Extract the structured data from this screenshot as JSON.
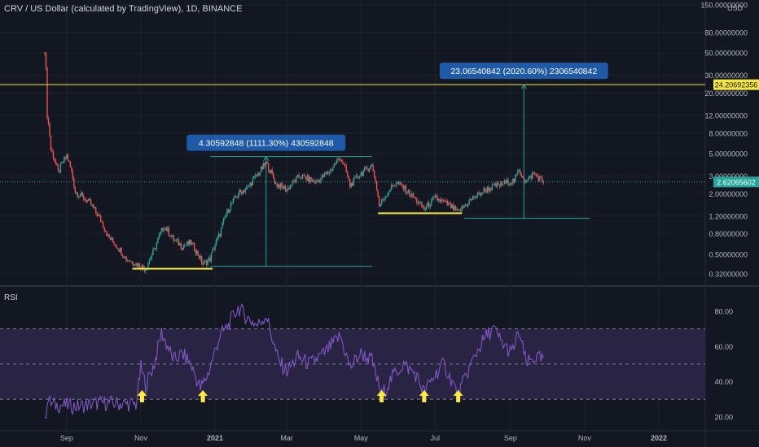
{
  "header": {
    "title": "CRV / US Dollar (calculated by TradingView), 1D, BINANCE"
  },
  "price_axis": {
    "currency": "USD",
    "last_price_label": "2.62065602",
    "resistance_label": "24.20692356"
  },
  "annotations": {
    "measure1": "4.30592848 (1111.30%) 430592848",
    "measure2": "23.06540842 (2020.60%) 2306540842"
  },
  "rsi_panel": {
    "label": "RSI"
  },
  "colors": {
    "background": "#131722",
    "up": "#26a69a",
    "down": "#ef5350",
    "yellow_line": "#f5e642",
    "measure_box": "#1e5aa8",
    "rsi_line": "#7e57c2",
    "rsi_band": "#2a2444",
    "arrow": "#ffeb3b"
  },
  "chart_data": [
    {
      "type": "candlestick",
      "title": "CRV / US Dollar (calculated by TradingView), 1D, BINANCE",
      "scale": "log",
      "ylabel": "USD",
      "y_ticks": [
        "150.00000000",
        "80.00000000",
        "50.00000000",
        "30.00000000",
        "20.00000000",
        "12.00000000",
        "8.00000000",
        "5.00000000",
        "3.00000000",
        "2.00000000",
        "1.20000000",
        "0.80000000",
        "0.50000000",
        "0.32000000"
      ],
      "x_ticks": [
        "Sep",
        "Nov",
        "2021",
        "Mar",
        "May",
        "Jul",
        "Sep",
        "Nov",
        "2022"
      ],
      "last_price": 2.62065602,
      "horizontal_line": 24.20692356,
      "price_path": [
        {
          "t": "2020-08-14",
          "p": 54.0
        },
        {
          "t": "2020-08-16",
          "p": 12.0
        },
        {
          "t": "2020-08-19",
          "p": 5.5
        },
        {
          "t": "2020-08-25",
          "p": 3.2
        },
        {
          "t": "2020-09-01",
          "p": 4.8
        },
        {
          "t": "2020-09-08",
          "p": 2.1
        },
        {
          "t": "2020-09-20",
          "p": 1.6
        },
        {
          "t": "2020-10-05",
          "p": 0.75
        },
        {
          "t": "2020-10-20",
          "p": 0.45
        },
        {
          "t": "2020-11-05",
          "p": 0.36
        },
        {
          "t": "2020-11-12",
          "p": 0.55
        },
        {
          "t": "2020-11-20",
          "p": 0.95
        },
        {
          "t": "2020-11-28",
          "p": 0.7
        },
        {
          "t": "2020-12-05",
          "p": 0.6
        },
        {
          "t": "2020-12-12",
          "p": 0.65
        },
        {
          "t": "2020-12-22",
          "p": 0.4
        },
        {
          "t": "2020-12-28",
          "p": 0.45
        },
        {
          "t": "2021-01-05",
          "p": 0.8
        },
        {
          "t": "2021-01-12",
          "p": 1.4
        },
        {
          "t": "2021-01-20",
          "p": 2.0
        },
        {
          "t": "2021-01-28",
          "p": 2.3
        },
        {
          "t": "2021-02-06",
          "p": 3.2
        },
        {
          "t": "2021-02-12",
          "p": 4.0
        },
        {
          "t": "2021-02-20",
          "p": 2.5
        },
        {
          "t": "2021-03-01",
          "p": 2.2
        },
        {
          "t": "2021-03-12",
          "p": 3.0
        },
        {
          "t": "2021-03-25",
          "p": 2.6
        },
        {
          "t": "2021-04-05",
          "p": 3.3
        },
        {
          "t": "2021-04-14",
          "p": 4.6
        },
        {
          "t": "2021-04-22",
          "p": 2.4
        },
        {
          "t": "2021-05-01",
          "p": 3.2
        },
        {
          "t": "2021-05-10",
          "p": 3.8
        },
        {
          "t": "2021-05-16",
          "p": 1.5
        },
        {
          "t": "2021-05-22",
          "p": 2.0
        },
        {
          "t": "2021-05-30",
          "p": 2.6
        },
        {
          "t": "2021-06-10",
          "p": 2.0
        },
        {
          "t": "2021-06-22",
          "p": 1.4
        },
        {
          "t": "2021-07-01",
          "p": 1.8
        },
        {
          "t": "2021-07-10",
          "p": 1.6
        },
        {
          "t": "2021-07-20",
          "p": 1.3
        },
        {
          "t": "2021-08-01",
          "p": 1.8
        },
        {
          "t": "2021-08-12",
          "p": 2.2
        },
        {
          "t": "2021-08-25",
          "p": 2.5
        },
        {
          "t": "2021-09-04",
          "p": 2.7
        },
        {
          "t": "2021-09-08",
          "p": 3.4
        },
        {
          "t": "2021-09-14",
          "p": 2.6
        },
        {
          "t": "2021-09-20",
          "p": 3.2
        },
        {
          "t": "2021-09-28",
          "p": 2.6
        }
      ],
      "support_lines": [
        {
          "from": "2020-10-25",
          "to": "2020-12-30",
          "value": 0.36
        },
        {
          "from": "2021-05-15",
          "to": "2021-07-23",
          "value": 1.28
        }
      ],
      "measures": [
        {
          "from_value": 0.38,
          "to_value": 4.68,
          "percent": "1111.30%",
          "change": 4.30592848
        },
        {
          "from_value": 1.14,
          "to_value": 24.2,
          "percent": "2020.60%",
          "change": 23.06540842
        }
      ]
    },
    {
      "type": "line",
      "title": "RSI",
      "ylim": [
        13,
        92
      ],
      "y_ticks": [
        "80.00",
        "60.00",
        "40.00",
        "20.00"
      ],
      "band": [
        30,
        70
      ],
      "midline": 50,
      "series": [
        {
          "values_path": [
            {
              "t": "2020-08-14",
              "v": 16
            },
            {
              "t": "2020-08-16",
              "v": 30
            },
            {
              "t": "2020-08-20",
              "v": 27
            },
            {
              "t": "2020-09-10",
              "v": 26
            },
            {
              "t": "2020-10-01",
              "v": 28
            },
            {
              "t": "2020-10-28",
              "v": 27
            },
            {
              "t": "2020-11-01",
              "v": 48
            },
            {
              "t": "2020-11-05",
              "v": 38
            },
            {
              "t": "2020-11-12",
              "v": 50
            },
            {
              "t": "2020-11-18",
              "v": 68
            },
            {
              "t": "2020-11-28",
              "v": 52
            },
            {
              "t": "2020-12-05",
              "v": 56
            },
            {
              "t": "2020-12-12",
              "v": 50
            },
            {
              "t": "2020-12-20",
              "v": 36
            },
            {
              "t": "2020-12-26",
              "v": 44
            },
            {
              "t": "2021-01-05",
              "v": 66
            },
            {
              "t": "2021-01-12",
              "v": 72
            },
            {
              "t": "2021-01-20",
              "v": 82
            },
            {
              "t": "2021-01-28",
              "v": 76
            },
            {
              "t": "2021-02-05",
              "v": 72
            },
            {
              "t": "2021-02-12",
              "v": 78
            },
            {
              "t": "2021-02-22",
              "v": 52
            },
            {
              "t": "2021-03-01",
              "v": 46
            },
            {
              "t": "2021-03-10",
              "v": 54
            },
            {
              "t": "2021-03-20",
              "v": 50
            },
            {
              "t": "2021-04-01",
              "v": 56
            },
            {
              "t": "2021-04-14",
              "v": 66
            },
            {
              "t": "2021-04-22",
              "v": 48
            },
            {
              "t": "2021-05-01",
              "v": 56
            },
            {
              "t": "2021-05-10",
              "v": 52
            },
            {
              "t": "2021-05-18",
              "v": 32
            },
            {
              "t": "2021-05-28",
              "v": 44
            },
            {
              "t": "2021-06-05",
              "v": 50
            },
            {
              "t": "2021-06-15",
              "v": 44
            },
            {
              "t": "2021-06-22",
              "v": 34
            },
            {
              "t": "2021-07-01",
              "v": 44
            },
            {
              "t": "2021-07-08",
              "v": 50
            },
            {
              "t": "2021-07-15",
              "v": 40
            },
            {
              "t": "2021-07-20",
              "v": 32
            },
            {
              "t": "2021-07-28",
              "v": 46
            },
            {
              "t": "2021-08-05",
              "v": 58
            },
            {
              "t": "2021-08-12",
              "v": 66
            },
            {
              "t": "2021-08-18",
              "v": 70
            },
            {
              "t": "2021-08-25",
              "v": 62
            },
            {
              "t": "2021-09-02",
              "v": 56
            },
            {
              "t": "2021-09-08",
              "v": 68
            },
            {
              "t": "2021-09-14",
              "v": 50
            },
            {
              "t": "2021-09-22",
              "v": 54
            },
            {
              "t": "2021-09-28",
              "v": 52
            }
          ]
        }
      ],
      "arrows": [
        "2020-11-02",
        "2020-12-22",
        "2021-05-18",
        "2021-06-22",
        "2021-07-20"
      ]
    }
  ]
}
